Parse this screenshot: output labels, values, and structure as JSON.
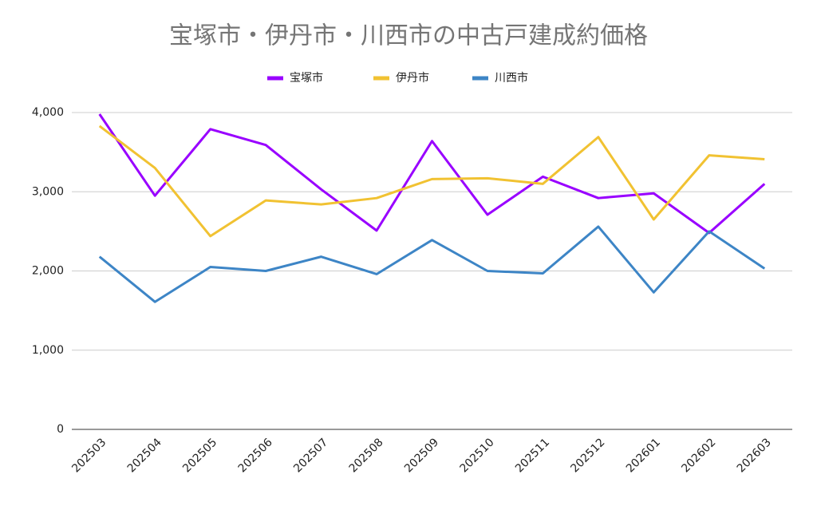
{
  "chart_data": {
    "type": "line",
    "title": "宝塚市・伊丹市・川西市の中古戸建成約価格",
    "categories": [
      "202503",
      "202504",
      "202505",
      "202506",
      "202507",
      "202508",
      "202509",
      "202510",
      "202511",
      "202512",
      "202601",
      "202602",
      "202603"
    ],
    "series": [
      {
        "name": "宝塚市",
        "color": "#9900ff",
        "values": [
          3980,
          2950,
          3790,
          3590,
          3030,
          2510,
          3640,
          2710,
          3190,
          2920,
          2980,
          2480,
          3100
        ]
      },
      {
        "name": "伊丹市",
        "color": "#f1c232",
        "values": [
          3830,
          3300,
          2440,
          2890,
          2840,
          2920,
          3160,
          3170,
          3100,
          3690,
          2650,
          3460,
          3410
        ]
      },
      {
        "name": "川西市",
        "color": "#3d85c6",
        "values": [
          2180,
          1610,
          2050,
          2000,
          2180,
          1960,
          2390,
          2000,
          1970,
          2560,
          1730,
          2500,
          2030
        ]
      }
    ],
    "ylim": [
      0,
      4000
    ],
    "yticks": [
      0,
      {
        "value": 1000,
        "label": "1,000"
      },
      {
        "value": 2000,
        "label": "2,000"
      },
      {
        "value": 3000,
        "label": "3,000"
      },
      {
        "value": 4000,
        "label": "4,000"
      }
    ],
    "grid": true,
    "legend": "top"
  }
}
